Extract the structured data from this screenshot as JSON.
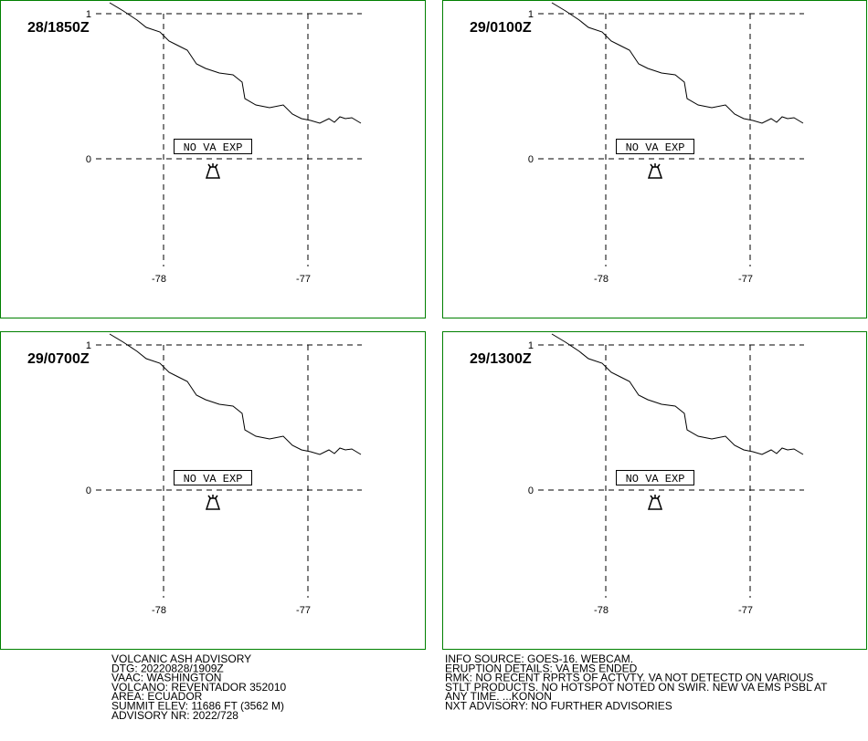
{
  "panels": [
    {
      "time": "28/1850Z",
      "lat_labels": [
        "1",
        "0"
      ],
      "lon_labels": [
        "-78",
        "-77"
      ],
      "label": "NO VA EXP"
    },
    {
      "time": "29/0100Z",
      "lat_labels": [
        "1",
        "0"
      ],
      "lon_labels": [
        "-78",
        "-77"
      ],
      "label": "NO VA EXP"
    },
    {
      "time": "29/0700Z",
      "lat_labels": [
        "1",
        "0"
      ],
      "lon_labels": [
        "-78",
        "-77"
      ],
      "label": "NO VA EXP"
    },
    {
      "time": "29/1300Z",
      "lat_labels": [
        "1",
        "0"
      ],
      "lon_labels": [
        "-78",
        "-77"
      ],
      "label": "NO VA EXP"
    }
  ],
  "advisory": {
    "left": [
      "VOLCANIC ASH ADVISORY",
      "DTG: 20220828/1909Z",
      "VAAC: WASHINGTON",
      "VOLCANO: REVENTADOR 352010",
      "AREA: ECUADOR",
      "SUMMIT ELEV: 11686 FT (3562 M)",
      "ADVISORY NR: 2022/728"
    ],
    "right": [
      "INFO SOURCE: GOES-16. WEBCAM.",
      "ERUPTION DETAILS: VA EMS ENDED",
      "RMK: NO RECENT RPRTS OF ACTVTY. VA NOT DETECTD ON VARIOUS",
      "STLT PRODUCTS. NO HOTSPOT NOTED ON SWIR. NEW VA EMS PSBL AT",
      "ANY TIME. ...KONON",
      "NXT ADVISORY: NO FURTHER ADVISORIES"
    ]
  }
}
